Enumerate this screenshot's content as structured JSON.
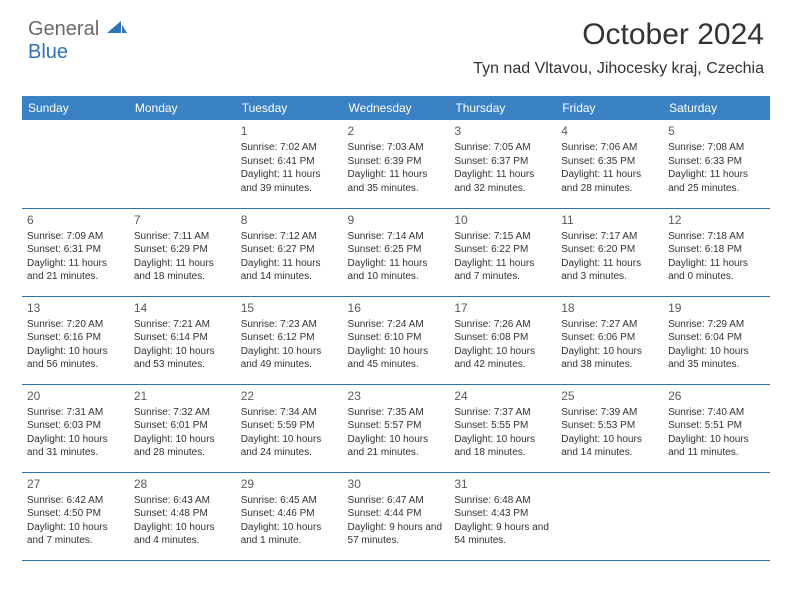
{
  "brand": {
    "part1": "General",
    "part2": "Blue"
  },
  "title": "October 2024",
  "location": "Tyn nad Vltavou, Jihocesky kraj, Czechia",
  "colors": {
    "header_bg": "#3a82c4",
    "header_text": "#ffffff",
    "row_border": "#2f73b6",
    "body_text": "#333333",
    "logo_gray": "#6b6b6b",
    "logo_blue": "#2f73b6",
    "page_bg": "#ffffff"
  },
  "fonts": {
    "title_size": 30,
    "location_size": 16,
    "header_size": 12,
    "daynum_size": 12,
    "info_size": 10
  },
  "weekdays": [
    "Sunday",
    "Monday",
    "Tuesday",
    "Wednesday",
    "Thursday",
    "Friday",
    "Saturday"
  ],
  "weeks": [
    [
      null,
      null,
      {
        "n": "1",
        "sr": "7:02 AM",
        "ss": "6:41 PM",
        "dl": "11 hours and 39 minutes."
      },
      {
        "n": "2",
        "sr": "7:03 AM",
        "ss": "6:39 PM",
        "dl": "11 hours and 35 minutes."
      },
      {
        "n": "3",
        "sr": "7:05 AM",
        "ss": "6:37 PM",
        "dl": "11 hours and 32 minutes."
      },
      {
        "n": "4",
        "sr": "7:06 AM",
        "ss": "6:35 PM",
        "dl": "11 hours and 28 minutes."
      },
      {
        "n": "5",
        "sr": "7:08 AM",
        "ss": "6:33 PM",
        "dl": "11 hours and 25 minutes."
      }
    ],
    [
      {
        "n": "6",
        "sr": "7:09 AM",
        "ss": "6:31 PM",
        "dl": "11 hours and 21 minutes."
      },
      {
        "n": "7",
        "sr": "7:11 AM",
        "ss": "6:29 PM",
        "dl": "11 hours and 18 minutes."
      },
      {
        "n": "8",
        "sr": "7:12 AM",
        "ss": "6:27 PM",
        "dl": "11 hours and 14 minutes."
      },
      {
        "n": "9",
        "sr": "7:14 AM",
        "ss": "6:25 PM",
        "dl": "11 hours and 10 minutes."
      },
      {
        "n": "10",
        "sr": "7:15 AM",
        "ss": "6:22 PM",
        "dl": "11 hours and 7 minutes."
      },
      {
        "n": "11",
        "sr": "7:17 AM",
        "ss": "6:20 PM",
        "dl": "11 hours and 3 minutes."
      },
      {
        "n": "12",
        "sr": "7:18 AM",
        "ss": "6:18 PM",
        "dl": "11 hours and 0 minutes."
      }
    ],
    [
      {
        "n": "13",
        "sr": "7:20 AM",
        "ss": "6:16 PM",
        "dl": "10 hours and 56 minutes."
      },
      {
        "n": "14",
        "sr": "7:21 AM",
        "ss": "6:14 PM",
        "dl": "10 hours and 53 minutes."
      },
      {
        "n": "15",
        "sr": "7:23 AM",
        "ss": "6:12 PM",
        "dl": "10 hours and 49 minutes."
      },
      {
        "n": "16",
        "sr": "7:24 AM",
        "ss": "6:10 PM",
        "dl": "10 hours and 45 minutes."
      },
      {
        "n": "17",
        "sr": "7:26 AM",
        "ss": "6:08 PM",
        "dl": "10 hours and 42 minutes."
      },
      {
        "n": "18",
        "sr": "7:27 AM",
        "ss": "6:06 PM",
        "dl": "10 hours and 38 minutes."
      },
      {
        "n": "19",
        "sr": "7:29 AM",
        "ss": "6:04 PM",
        "dl": "10 hours and 35 minutes."
      }
    ],
    [
      {
        "n": "20",
        "sr": "7:31 AM",
        "ss": "6:03 PM",
        "dl": "10 hours and 31 minutes."
      },
      {
        "n": "21",
        "sr": "7:32 AM",
        "ss": "6:01 PM",
        "dl": "10 hours and 28 minutes."
      },
      {
        "n": "22",
        "sr": "7:34 AM",
        "ss": "5:59 PM",
        "dl": "10 hours and 24 minutes."
      },
      {
        "n": "23",
        "sr": "7:35 AM",
        "ss": "5:57 PM",
        "dl": "10 hours and 21 minutes."
      },
      {
        "n": "24",
        "sr": "7:37 AM",
        "ss": "5:55 PM",
        "dl": "10 hours and 18 minutes."
      },
      {
        "n": "25",
        "sr": "7:39 AM",
        "ss": "5:53 PM",
        "dl": "10 hours and 14 minutes."
      },
      {
        "n": "26",
        "sr": "7:40 AM",
        "ss": "5:51 PM",
        "dl": "10 hours and 11 minutes."
      }
    ],
    [
      {
        "n": "27",
        "sr": "6:42 AM",
        "ss": "4:50 PM",
        "dl": "10 hours and 7 minutes."
      },
      {
        "n": "28",
        "sr": "6:43 AM",
        "ss": "4:48 PM",
        "dl": "10 hours and 4 minutes."
      },
      {
        "n": "29",
        "sr": "6:45 AM",
        "ss": "4:46 PM",
        "dl": "10 hours and 1 minute."
      },
      {
        "n": "30",
        "sr": "6:47 AM",
        "ss": "4:44 PM",
        "dl": "9 hours and 57 minutes."
      },
      {
        "n": "31",
        "sr": "6:48 AM",
        "ss": "4:43 PM",
        "dl": "9 hours and 54 minutes."
      },
      null,
      null
    ]
  ],
  "labels": {
    "sunrise": "Sunrise: ",
    "sunset": "Sunset: ",
    "daylight": "Daylight: "
  }
}
